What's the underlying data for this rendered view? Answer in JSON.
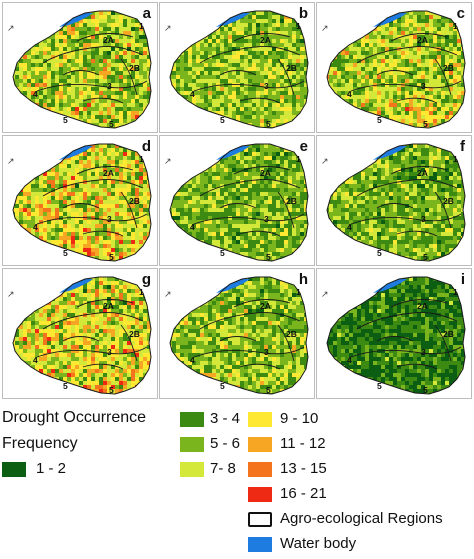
{
  "panels": [
    {
      "label": "a",
      "zones": [
        "2A",
        "2B",
        "3",
        "4",
        "5",
        "5",
        "1"
      ],
      "profile": "warm"
    },
    {
      "label": "b",
      "zones": [
        "2A",
        "2B",
        "3",
        "4",
        "5",
        "5",
        "1"
      ],
      "profile": "mid"
    },
    {
      "label": "c",
      "zones": [
        "2A",
        "2B",
        "3",
        "4",
        "5",
        "5",
        "1"
      ],
      "profile": "warm"
    },
    {
      "label": "d",
      "zones": [
        "2A",
        "2B",
        "3",
        "4",
        "5",
        "5",
        "1"
      ],
      "profile": "hot"
    },
    {
      "label": "e",
      "zones": [
        "2A",
        "2B",
        "3",
        "4",
        "5",
        "5",
        "1"
      ],
      "profile": "cool"
    },
    {
      "label": "f",
      "zones": [
        "2A",
        "2B",
        "3",
        "4",
        "5",
        "5",
        "1"
      ],
      "profile": "cool"
    },
    {
      "label": "g",
      "zones": [
        "2A",
        "2B",
        "3",
        "4",
        "5",
        "5",
        "1"
      ],
      "profile": "hot"
    },
    {
      "label": "h",
      "zones": [
        "2A",
        "2B",
        "3",
        "4",
        "5",
        "5",
        "1"
      ],
      "profile": "mid"
    },
    {
      "label": "i",
      "zones": [
        "2A",
        "2B",
        "3",
        "4",
        "5",
        "5",
        "1"
      ],
      "profile": "green"
    }
  ],
  "legend": {
    "title_line1": "Drought Occurrence",
    "title_line2": "Frequency",
    "classes": [
      {
        "label": "1 - 2",
        "color": "#0b5e12"
      },
      {
        "label": "3 - 4",
        "color": "#3c8a12"
      },
      {
        "label": "5 - 6",
        "color": "#7ab51d"
      },
      {
        "label": "7- 8",
        "color": "#d4e83a"
      },
      {
        "label": "9 - 10",
        "color": "#ffe832"
      },
      {
        "label": "11 - 12",
        "color": "#f6a623"
      },
      {
        "label": "13 - 15",
        "color": "#f4741d"
      },
      {
        "label": "16 - 21",
        "color": "#ee2a14"
      }
    ],
    "agro_label": "Agro-ecological Regions",
    "water_label": "Water body",
    "water_color": "#1e7be0"
  }
}
